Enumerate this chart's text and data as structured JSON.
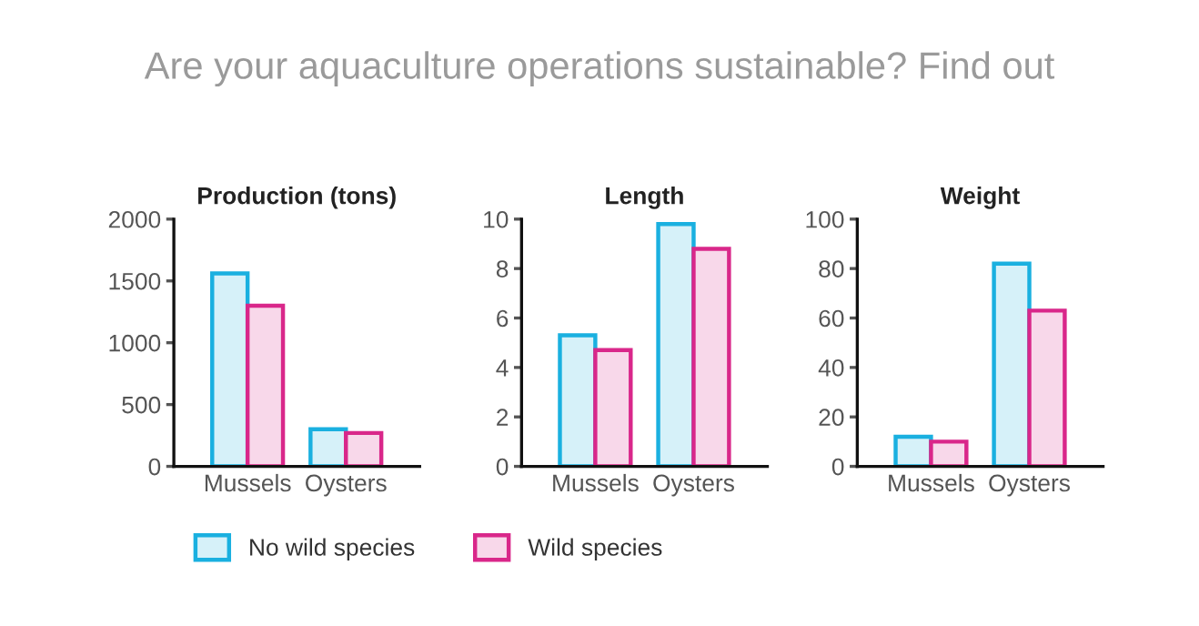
{
  "chart_data": [
    {
      "type": "bar",
      "title": "Production (tons)",
      "categories": [
        "Mussels",
        "Oysters"
      ],
      "series": [
        {
          "name": "No wild species",
          "color": "#1ab0e0",
          "values": [
            1560,
            300
          ]
        },
        {
          "name": "Wild species",
          "color": "#d9278a",
          "values": [
            1300,
            270
          ]
        }
      ],
      "ylim": [
        0,
        2000
      ],
      "yticks": [
        0,
        500,
        1000,
        1500,
        2000
      ],
      "legend": "bottom",
      "annotations": [
        "Are your aquaculture operations sustainable? Find out"
      ]
    },
    {
      "type": "bar",
      "title": "Length",
      "categories": [
        "Mussels",
        "Oysters"
      ],
      "series": [
        {
          "color": "#1ab0e0",
          "values": [
            5.3,
            9.8
          ]
        },
        {
          "color": "#d9278a",
          "values": [
            4.7,
            8.8
          ]
        }
      ],
      "ylim": [
        0,
        10
      ],
      "yticks": [
        0,
        2,
        4,
        6,
        8,
        10
      ]
    },
    {
      "type": "bar",
      "title": "Weight",
      "categories": [
        "Mussels",
        "Oysters"
      ],
      "series": [
        {
          "color": "#1ab0e0",
          "values": [
            12,
            82
          ]
        },
        {
          "color": "#d9278a",
          "values": [
            10,
            63
          ]
        }
      ],
      "ylim": [
        0,
        100
      ],
      "yticks": [
        0,
        20,
        40,
        60,
        80,
        100
      ]
    }
  ]
}
